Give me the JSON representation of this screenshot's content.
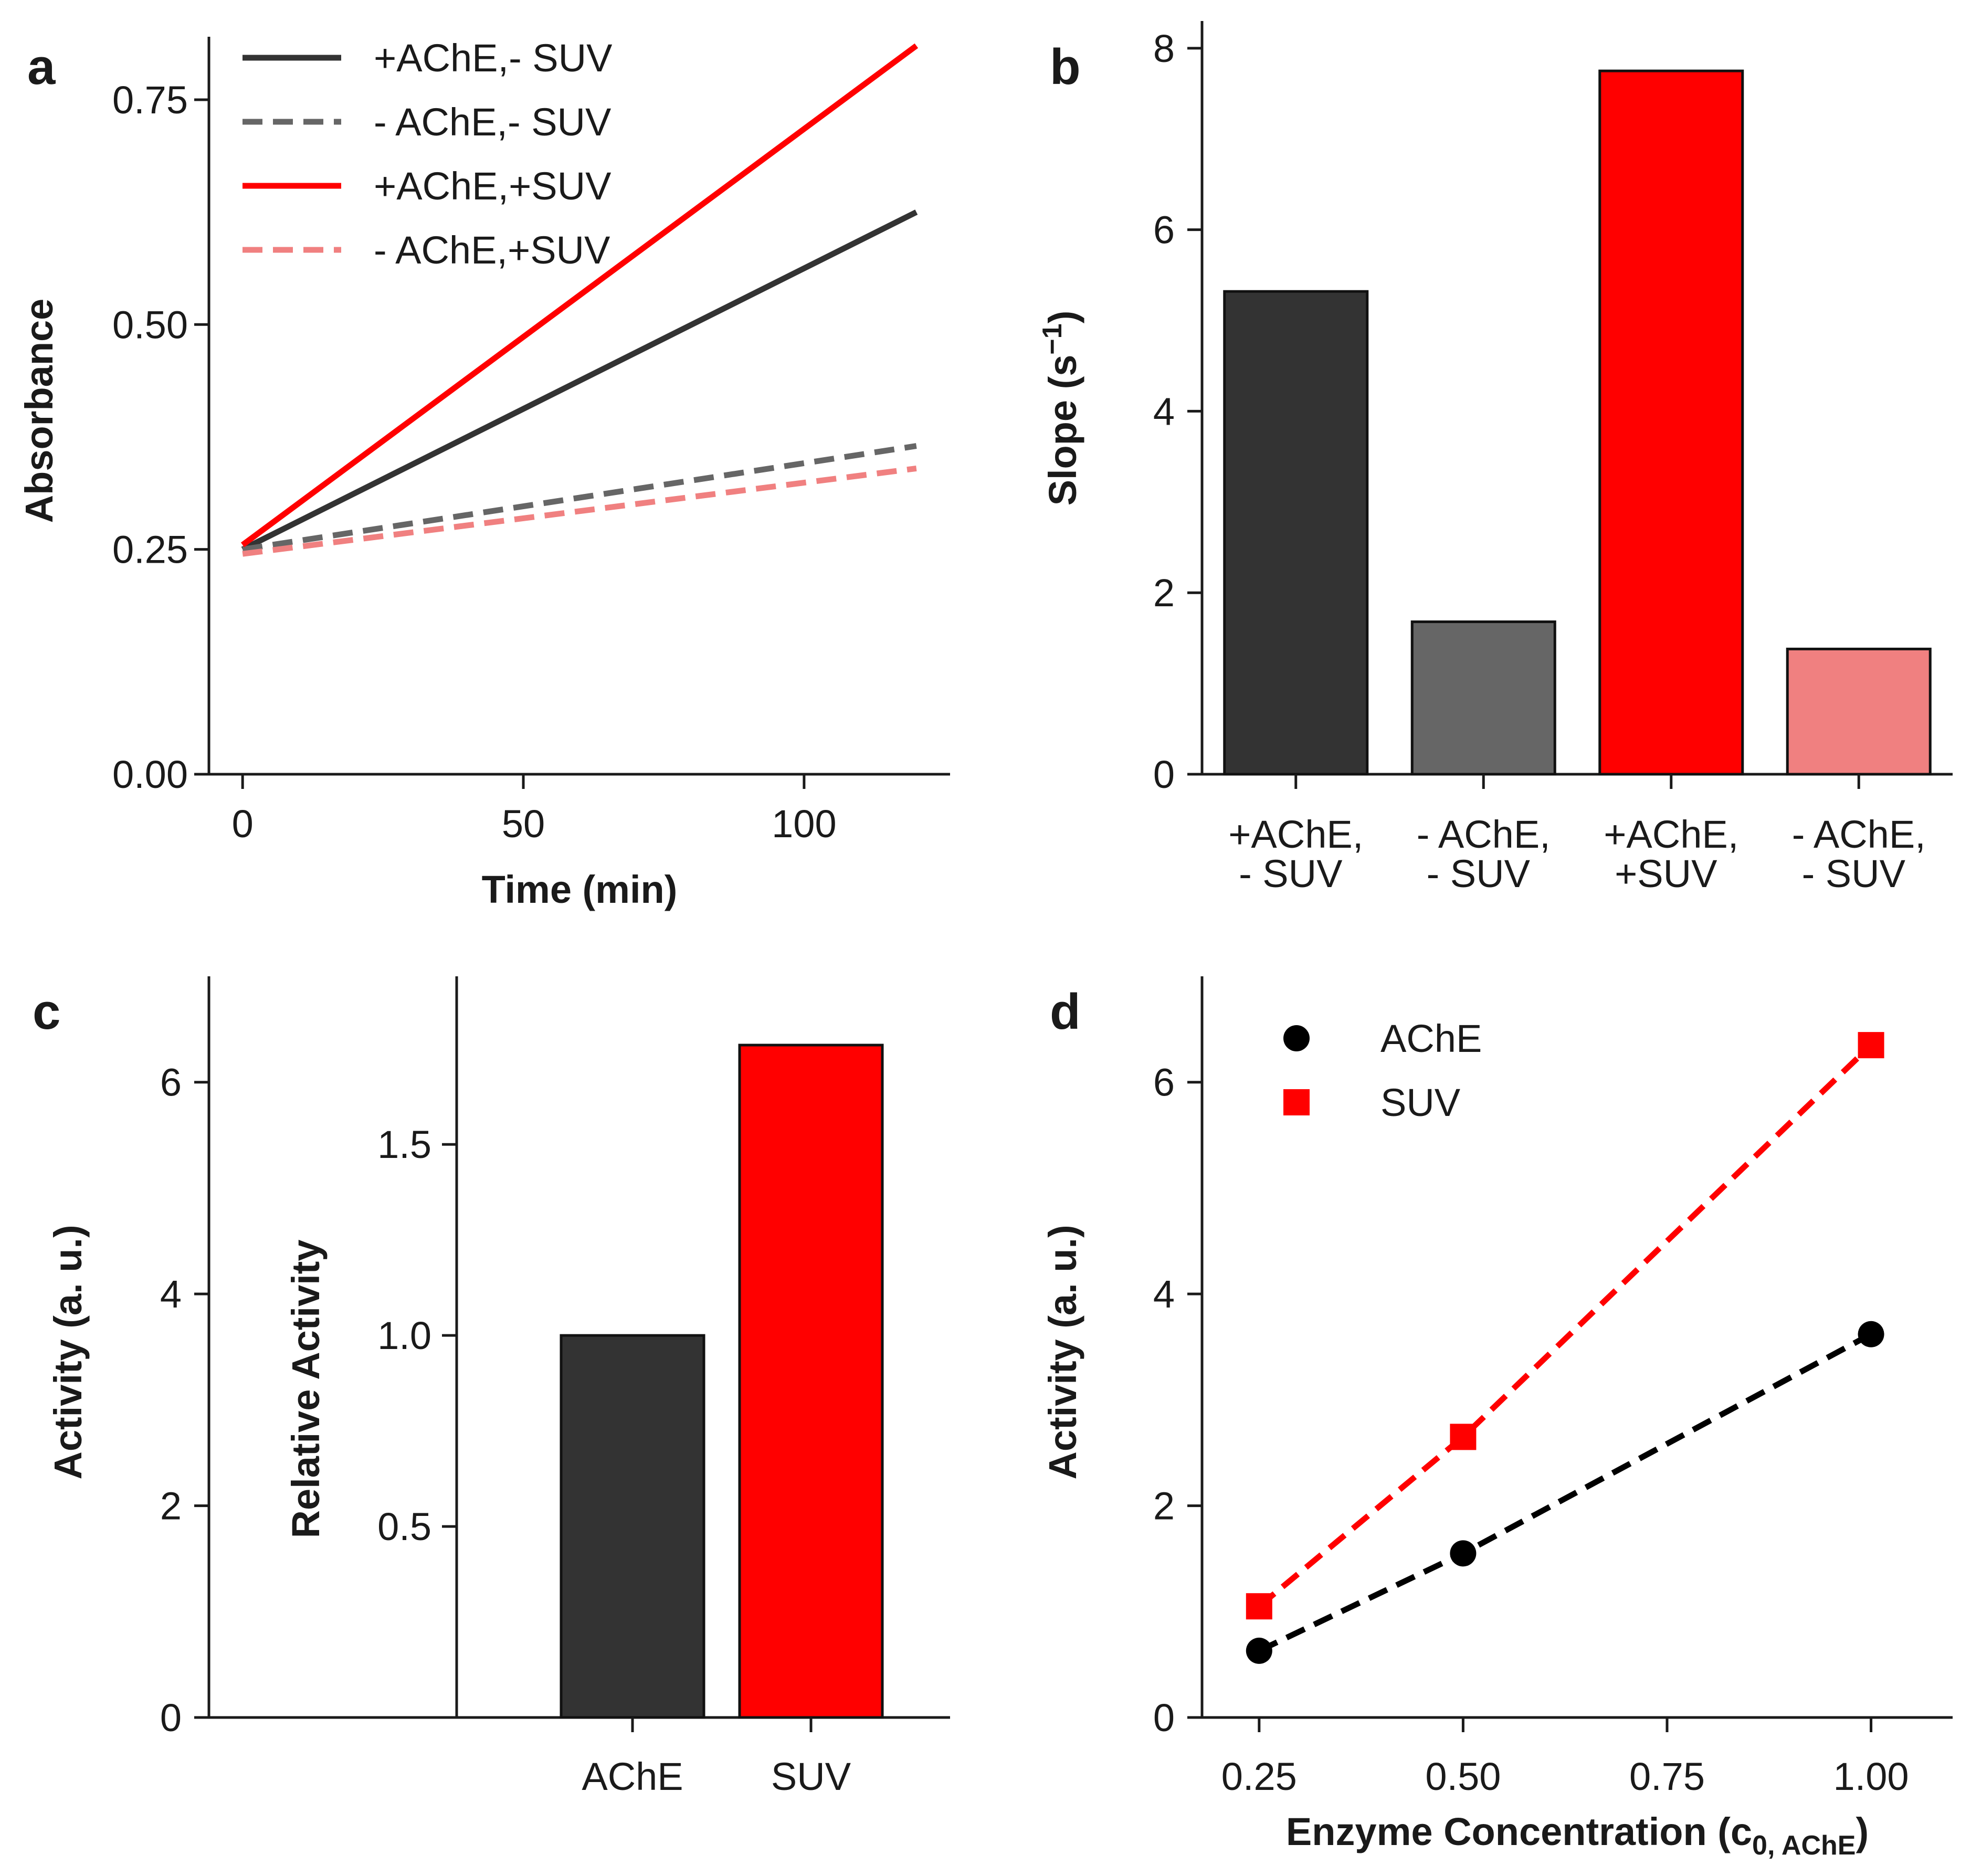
{
  "chart_data": [
    {
      "panel": "a",
      "type": "line",
      "xlabel": "Time (min)",
      "ylabel": "Absorbance",
      "xlim": [
        -6,
        126
      ],
      "ylim": [
        0,
        0.82
      ],
      "xticks": [
        "0",
        "50",
        "100"
      ],
      "xtick_values": [
        0,
        50,
        100
      ],
      "yticks": [
        "0.00",
        "0.25",
        "0.50",
        "0.75"
      ],
      "ytick_values": [
        0,
        0.25,
        0.5,
        0.75
      ],
      "legend_position": "top-left",
      "series": [
        {
          "name": "+AChE,- SUV",
          "color": "#333333",
          "dash": "solid",
          "x": [
            0,
            120
          ],
          "y": [
            0.25,
            0.625
          ]
        },
        {
          "name": "- AChE,- SUV",
          "color": "#666666",
          "dash": "dashed",
          "x": [
            0,
            120
          ],
          "y": [
            0.25,
            0.365
          ]
        },
        {
          "name": "+AChE,+SUV",
          "color": "#ff0000",
          "dash": "solid",
          "x": [
            0,
            120
          ],
          "y": [
            0.255,
            0.81
          ]
        },
        {
          "name": "- AChE,+SUV",
          "color": "#f08080",
          "dash": "dashed",
          "x": [
            0,
            120
          ],
          "y": [
            0.245,
            0.34
          ]
        }
      ]
    },
    {
      "panel": "b",
      "type": "bar",
      "ylabel": "Slope (s",
      "ylabel_sup": "−1",
      "ylabel_end": ")",
      "ylim": [
        0,
        8.3
      ],
      "yticks": [
        "0",
        "2",
        "4",
        "6",
        "8"
      ],
      "ytick_values": [
        0,
        2,
        4,
        6,
        8
      ],
      "categories": [
        {
          "line1": "+AChE,",
          "line2": "- SUV"
        },
        {
          "line1": "- AChE,",
          "line2": "- SUV"
        },
        {
          "line1": "+AChE,",
          "line2": "+SUV"
        },
        {
          "line1": "- AChE,",
          "line2": "- SUV"
        }
      ],
      "values": [
        5.32,
        1.68,
        7.75,
        1.38
      ],
      "colors": [
        "#333333",
        "#666666",
        "#ff0000",
        "#f08080"
      ]
    },
    {
      "panel": "c",
      "type": "bar",
      "ylabel": "Activity (a. u.)",
      "ylim": [
        0,
        7
      ],
      "yticks": [
        "0",
        "2",
        "4",
        "6"
      ],
      "ytick_values": [
        0,
        2,
        4,
        6
      ],
      "inner_ylabel": "Relative Activity",
      "inner_ylim": [
        0,
        1.94
      ],
      "inner_yticks": [
        "0.5",
        "1.0",
        "1.5"
      ],
      "inner_ytick_values": [
        0.5,
        1.0,
        1.5
      ],
      "categories": [
        "AChE",
        "SUV"
      ],
      "values": [
        1.0,
        1.76
      ],
      "colors": [
        "#333333",
        "#ff0000"
      ]
    },
    {
      "panel": "d",
      "type": "line",
      "xlabel": "Enzyme Concentration (c",
      "xlabel_sub": "0, AChE",
      "xlabel_end": ")",
      "ylabel": "Activity (a. u.)",
      "xlim": [
        0.18,
        1.1
      ],
      "ylim": [
        0,
        7
      ],
      "xticks": [
        "0.25",
        "0.50",
        "0.75",
        "1.00"
      ],
      "xtick_values": [
        0.25,
        0.5,
        0.75,
        1.0
      ],
      "yticks": [
        "0",
        "2",
        "4",
        "6"
      ],
      "ytick_values": [
        0,
        2,
        4,
        6
      ],
      "legend_position": "top-left",
      "series": [
        {
          "name": "AChE",
          "color": "#000000",
          "marker": "circle",
          "x": [
            0.25,
            0.5,
            1.0
          ],
          "y": [
            0.63,
            1.55,
            3.62
          ]
        },
        {
          "name": "SUV",
          "color": "#ff0000",
          "marker": "square",
          "x": [
            0.25,
            0.5,
            1.0
          ],
          "y": [
            1.05,
            2.65,
            6.35
          ]
        }
      ]
    }
  ],
  "panel_letters": {
    "a": "a",
    "b": "b",
    "c": "c",
    "d": "d"
  }
}
